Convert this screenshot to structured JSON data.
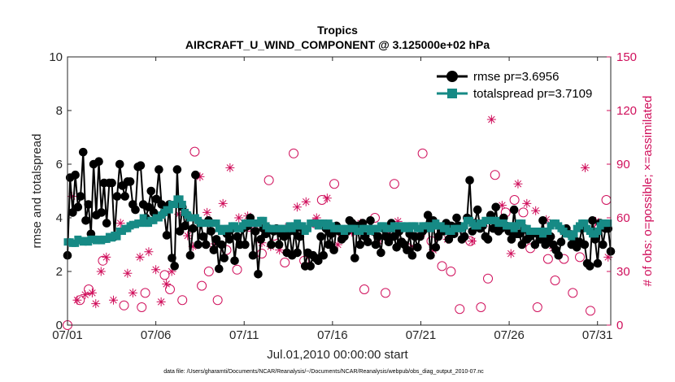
{
  "chart_data": {
    "type": "line",
    "title": "Tropics",
    "subtitle": "AIRCRAFT_U_WIND_COMPONENT @ 3.125000e+02 hPa",
    "xlabel": "Jul.01,2010 00:00:00 start",
    "ylabel_left": "rmse and totalspread",
    "ylabel_right": "# of obs: o=possible; ×=assimilated",
    "footnote": "data file: /Users/gharamti/Documents/NCAR/Reanalysis/~/Documents/NCAR/Reanalysis/webpub/obs_diag_output_2010-07.nc",
    "x_unit": "days since Jul 01 00:00",
    "xlim": [
      0,
      30.75
    ],
    "ylim_left": [
      0,
      10
    ],
    "ylim_right": [
      0,
      150
    ],
    "xticks": [
      0,
      5,
      10,
      15,
      20,
      25,
      30
    ],
    "xtick_labels": [
      "07/01",
      "07/06",
      "07/11",
      "07/16",
      "07/21",
      "07/26",
      "07/31"
    ],
    "yticks_left": [
      "0",
      "2",
      "4",
      "6",
      "8",
      "10"
    ],
    "yticks_right": [
      "0",
      "30",
      "60",
      "90",
      "120",
      "150"
    ],
    "legend_position": "top-right",
    "series": [
      {
        "name": "rmse",
        "legend_label": "rmse pr=3.6956",
        "axis": "left",
        "color": "#000000",
        "marker": "circle",
        "values": [
          2.6,
          5.5,
          4.2,
          5.6,
          4.4,
          4.8,
          6.45,
          3.9,
          4.5,
          3.4,
          6.0,
          4.1,
          6.1,
          4.2,
          5.3,
          3.8,
          5.3,
          5.3,
          3.3,
          4.8,
          6.0,
          5.2,
          4.8,
          5.35,
          5.35,
          4.5,
          4.3,
          5.9,
          5.95,
          4.5,
          4.0,
          4.4,
          5.0,
          4.2,
          4.7,
          5.8,
          4.5,
          4.2,
          3.35,
          4.5,
          2.5,
          2.2,
          5.8,
          3.5,
          4.4,
          3.7,
          4.1,
          2.6,
          3.6,
          5.6,
          3.0,
          3.8,
          3.3,
          3.0,
          3.9,
          3.5,
          2.8,
          3.2,
          2.1,
          3.0,
          2.5,
          3.4,
          3.2,
          3.6,
          2.4,
          3.3,
          3.0,
          3.6,
          3.0,
          3.7,
          4.0,
          2.6,
          3.5,
          1.9,
          3.2,
          3.6,
          3.4,
          3.6,
          3.0,
          3.5,
          3.6,
          3.0,
          3.4,
          3.3,
          2.7,
          3.5,
          2.6,
          3.5,
          2.7,
          3.3,
          3.6,
          2.2,
          2.7,
          2.2,
          2.6,
          2.5,
          2.4,
          3.3,
          2.6,
          3.6,
          3.0,
          3.4,
          2.8,
          3.7,
          3.5,
          3.2,
          3.3,
          3.5,
          3.9,
          3.8,
          2.5,
          3.7,
          3.0,
          3.8,
          3.3,
          3.1,
          3.9,
          3.5,
          3.0,
          3.3,
          2.7,
          3.6,
          3.3,
          3.1,
          3.8,
          3.3,
          2.9,
          3.5,
          3.1,
          3.0,
          2.8,
          3.4,
          2.6,
          3.3,
          2.9,
          3.3,
          3.5,
          3.6,
          4.1,
          2.6,
          3.9,
          2.9,
          3.3,
          3.5,
          3.5,
          3.8,
          3.2,
          3.7,
          3.4,
          4.0,
          3.7,
          3.2,
          3.3,
          4.0,
          5.4,
          3.5,
          3.8,
          4.3,
          3.6,
          3.7,
          3.3,
          3.2,
          4.1,
          3.6,
          4.4,
          3.5,
          3.6,
          4.0,
          3.7,
          3.5,
          3.2,
          4.3,
          3.4,
          3.4,
          3.0,
          3.6,
          3.2,
          3.3,
          3.4,
          3.0,
          3.4,
          3.2,
          3.9,
          3.0,
          3.2,
          3.3,
          3.0,
          2.8,
          2.6,
          3.1,
          3.5,
          3.6,
          3.4,
          3.0,
          3.2,
          2.9,
          3.1,
          3.6,
          3.0,
          2.3,
          2.2,
          3.9,
          3.2,
          2.3,
          3.8,
          3.0,
          3.6,
          3.6,
          2.75
        ]
      },
      {
        "name": "totalspread",
        "legend_label": "totalspread pr=3.7109",
        "axis": "left",
        "color": "#168a85",
        "marker": "square",
        "values": [
          3.1,
          3.1,
          3.05,
          3.05,
          3.2,
          3.15,
          3.1,
          3.15,
          3.1,
          3.2,
          3.2,
          3.15,
          3.2,
          3.15,
          3.2,
          3.2,
          3.3,
          3.25,
          3.35,
          3.3,
          3.5,
          3.5,
          3.6,
          3.6,
          3.7,
          3.75,
          3.75,
          3.8,
          3.8,
          4.0,
          3.8,
          3.8,
          3.9,
          3.9,
          4.0,
          4.0,
          4.1,
          4.2,
          4.3,
          4.3,
          4.5,
          4.5,
          4.7,
          4.7,
          4.5,
          4.2,
          4.1,
          4.0,
          4.0,
          4.0,
          3.9,
          3.8,
          3.8,
          3.8,
          3.8,
          3.8,
          3.8,
          3.8,
          3.6,
          3.5,
          3.6,
          3.6,
          3.6,
          3.7,
          3.7,
          3.6,
          3.6,
          3.7,
          3.8,
          3.8,
          3.8,
          3.8,
          3.8,
          3.8,
          3.9,
          3.9,
          3.7,
          3.6,
          3.6,
          3.6,
          3.6,
          3.6,
          3.6,
          3.6,
          3.6,
          3.7,
          3.6,
          3.7,
          3.8,
          3.7,
          3.7,
          3.5,
          3.6,
          3.8,
          3.8,
          3.8,
          3.7,
          3.8,
          3.8,
          3.7,
          3.8,
          3.7,
          3.6,
          3.6,
          3.6,
          3.6,
          3.5,
          3.6,
          3.6,
          3.6,
          3.6,
          3.5,
          3.5,
          3.6,
          3.6,
          3.6,
          3.5,
          3.6,
          3.6,
          3.6,
          3.7,
          3.7,
          3.6,
          3.6,
          3.6,
          3.7,
          3.7,
          3.7,
          3.7,
          3.6,
          3.7,
          3.6,
          3.7,
          3.7,
          3.6,
          3.6,
          3.7,
          3.7,
          3.7,
          3.6,
          3.7,
          3.8,
          3.7,
          3.7,
          3.6,
          3.6,
          3.5,
          3.5,
          3.6,
          3.6,
          3.6,
          3.6,
          3.7,
          3.9,
          3.9,
          3.8,
          3.7,
          3.7,
          3.8,
          3.8,
          3.9,
          3.9,
          3.9,
          3.9,
          3.9,
          3.8,
          3.8,
          3.8,
          3.7,
          3.7,
          3.7,
          3.6,
          3.7,
          3.8,
          3.8,
          3.6,
          3.6,
          3.5,
          3.5,
          3.5,
          3.5,
          3.5,
          3.4,
          3.5,
          3.5,
          3.7,
          3.8,
          3.8,
          3.7,
          3.6,
          3.5,
          3.4,
          3.4,
          3.3,
          3.4,
          3.6,
          3.7,
          3.8,
          3.8,
          3.6,
          3.5,
          3.4,
          3.4,
          3.5,
          3.7,
          3.8,
          3.8,
          3.8
        ]
      },
      {
        "name": "obs possible",
        "axis": "right",
        "color": "#d0105c",
        "marker": "open circle",
        "x": [
          0.0,
          0.7,
          1.2,
          2.0,
          3.2,
          4.2,
          4.4,
          5.5,
          5.8,
          6.5,
          7.2,
          7.6,
          8.0,
          8.5,
          9.0,
          9.6,
          10.3,
          11.0,
          11.4,
          11.7,
          12.3,
          12.8,
          13.4,
          14.0,
          14.4,
          15.1,
          15.6,
          16.2,
          16.8,
          17.4,
          18.0,
          18.5,
          19.3,
          20.1,
          20.6,
          21.2,
          21.7,
          22.2,
          22.8,
          23.4,
          23.8,
          24.2,
          24.8,
          25.3,
          25.8,
          26.2,
          26.6,
          27.2,
          27.6,
          28.1,
          28.6,
          29.0,
          29.6,
          30.1,
          30.5
        ],
        "values": [
          0,
          14,
          20,
          36,
          11,
          10,
          18,
          28,
          20,
          14,
          97,
          22,
          30,
          14,
          42,
          31,
          55,
          40,
          81,
          50,
          35,
          96,
          36,
          57,
          70,
          79,
          50,
          53,
          20,
          60,
          18,
          79,
          43,
          96,
          47,
          33,
          30,
          9,
          47,
          10,
          26,
          84,
          63,
          70,
          63,
          43,
          10,
          37,
          25,
          37,
          18,
          38,
          8,
          55,
          70
        ]
      },
      {
        "name": "obs assimilated",
        "axis": "right",
        "color": "#d0105c",
        "marker": "asterisk",
        "x": [
          0.25,
          0.55,
          1.0,
          1.4,
          1.6,
          1.9,
          2.2,
          2.6,
          3.0,
          3.4,
          3.7,
          4.1,
          4.6,
          5.0,
          5.3,
          5.6,
          5.9,
          6.3,
          6.8,
          7.1,
          7.5,
          7.9,
          8.3,
          8.8,
          9.2,
          9.7,
          10.2,
          10.6,
          11.0,
          11.5,
          12.0,
          12.5,
          13.0,
          13.5,
          14.1,
          14.7,
          15.3,
          16.1,
          16.6,
          17.1,
          17.6,
          18.2,
          18.7,
          19.4,
          20.0,
          20.7,
          21.5,
          22.3,
          22.9,
          23.6,
          24.0,
          24.6,
          25.1,
          25.5,
          26.0,
          26.5,
          27.1,
          27.5,
          28.3,
          28.8,
          29.3,
          29.9,
          30.6
        ],
        "values": [
          72,
          14,
          17,
          18,
          12,
          30,
          38,
          14,
          57,
          29,
          18,
          38,
          41,
          31,
          13,
          23,
          30,
          62,
          50,
          44,
          83,
          63,
          44,
          68,
          88,
          60,
          61,
          53,
          46,
          44,
          42,
          55,
          66,
          69,
          60,
          71,
          45,
          52,
          57,
          53,
          47,
          52,
          58,
          43,
          50,
          42,
          48,
          54,
          47,
          57,
          115,
          67,
          40,
          79,
          68,
          64,
          59,
          43,
          53,
          46,
          88,
          58,
          38
        ]
      }
    ]
  }
}
